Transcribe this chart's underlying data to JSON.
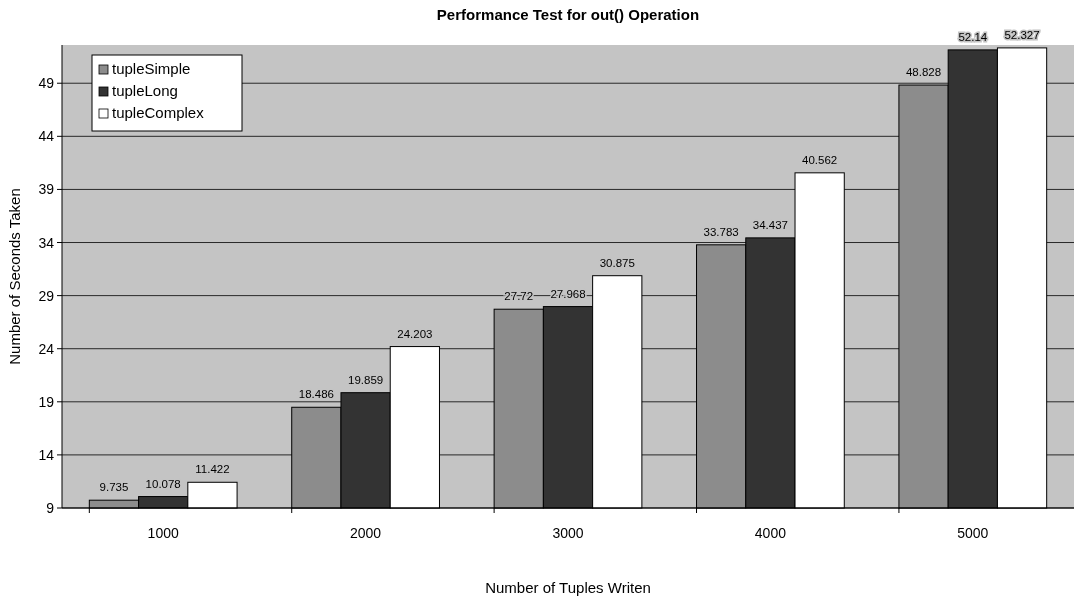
{
  "chart_data": {
    "type": "bar",
    "title": "Performance Test for out() Operation",
    "xlabel": "Number of Tuples Writen",
    "ylabel": "Number of Seconds Taken",
    "categories": [
      "1000",
      "2000",
      "3000",
      "4000",
      "5000"
    ],
    "series": [
      {
        "name": "tupleSimple",
        "color": "#8c8c8c",
        "values": [
          9.735,
          18.486,
          27.72,
          33.783,
          48.828
        ]
      },
      {
        "name": "tupleLong",
        "color": "#333333",
        "values": [
          10.078,
          19.859,
          27.968,
          34.437,
          52.14
        ]
      },
      {
        "name": "tupleComplex",
        "color": "#ffffff",
        "values": [
          11.422,
          24.203,
          30.875,
          40.562,
          52.327
        ]
      }
    ],
    "ylim": [
      9,
      52.6
    ],
    "yticks": [
      9,
      14,
      19,
      24,
      29,
      34,
      39,
      44,
      49
    ],
    "grid": "y",
    "legend": "top left",
    "data_labels": true
  }
}
